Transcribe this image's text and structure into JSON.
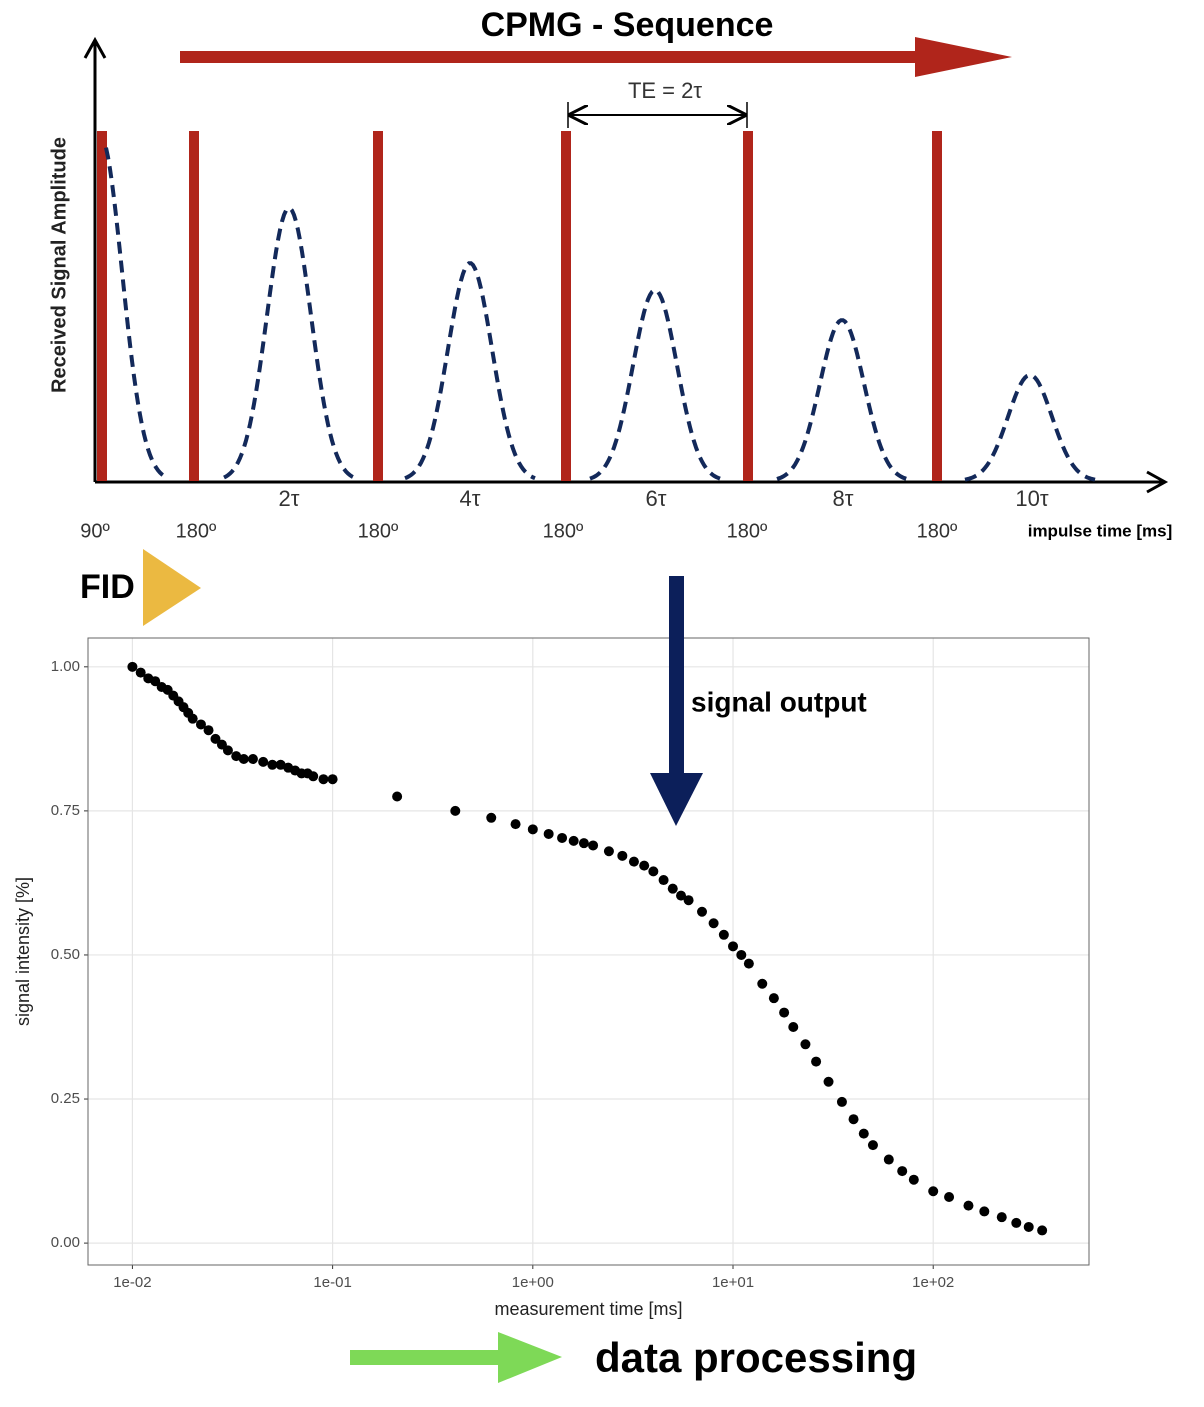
{
  "diagram": {
    "title": "CPMG - Sequence",
    "echo_spacing": "TE = 2τ",
    "y_label": "Received Signal Amplitude",
    "x_label": "impulse time [ms]",
    "echo_labels": [
      "2τ",
      "4τ",
      "6τ",
      "8τ",
      "10τ"
    ],
    "pulse_labels": [
      "90º",
      "180º",
      "180º",
      "180º",
      "180º",
      "180º"
    ],
    "fid": "FID",
    "signal_output": "signal output",
    "data_processing": "data processing"
  },
  "chart_data": {
    "type": "scatter",
    "xlabel": "measurement time [ms]",
    "ylabel": "signal intensity [%]",
    "log_x": true,
    "grid": true,
    "color": "#000000",
    "xlim": [
      0.006,
      600
    ],
    "ylim": [
      -0.038,
      1.05
    ],
    "xticks": [
      {
        "value": 0.01,
        "label": "1e-02"
      },
      {
        "value": 0.1,
        "label": "1e-01"
      },
      {
        "value": 1,
        "label": "1e+00"
      },
      {
        "value": 10,
        "label": "1e+01"
      },
      {
        "value": 100,
        "label": "1e+02"
      }
    ],
    "yticks": [
      {
        "value": 0,
        "label": "0.00"
      },
      {
        "value": 0.25,
        "label": "0.25"
      },
      {
        "value": 0.5,
        "label": "0.50"
      },
      {
        "value": 0.75,
        "label": "0.75"
      },
      {
        "value": 1,
        "label": "1.00"
      }
    ],
    "x": [
      0.01,
      0.011,
      0.012,
      0.013,
      0.014,
      0.015,
      0.016,
      0.017,
      0.018,
      0.019,
      0.02,
      0.022,
      0.024,
      0.026,
      0.028,
      0.03,
      0.033,
      0.036,
      0.04,
      0.045,
      0.05,
      0.055,
      0.06,
      0.065,
      0.07,
      0.075,
      0.08,
      0.09,
      0.1,
      0.21,
      0.41,
      0.62,
      0.82,
      1.0,
      1.2,
      1.4,
      1.6,
      1.8,
      2.0,
      2.4,
      2.8,
      3.2,
      3.6,
      4,
      4.5,
      5,
      5.5,
      6,
      7,
      8,
      9,
      10,
      11,
      12,
      14,
      16,
      18,
      20,
      23,
      26,
      30,
      35,
      40,
      45,
      50,
      60,
      70,
      80,
      100,
      120,
      150,
      180,
      220,
      260,
      300,
      350
    ],
    "values": [
      1.0,
      0.99,
      0.98,
      0.975,
      0.965,
      0.96,
      0.95,
      0.94,
      0.93,
      0.92,
      0.91,
      0.9,
      0.89,
      0.875,
      0.865,
      0.855,
      0.845,
      0.84,
      0.84,
      0.835,
      0.83,
      0.83,
      0.825,
      0.82,
      0.815,
      0.815,
      0.81,
      0.805,
      0.805,
      0.775,
      0.75,
      0.738,
      0.727,
      0.718,
      0.71,
      0.703,
      0.698,
      0.694,
      0.69,
      0.68,
      0.672,
      0.662,
      0.655,
      0.645,
      0.63,
      0.615,
      0.603,
      0.595,
      0.575,
      0.555,
      0.535,
      0.515,
      0.5,
      0.485,
      0.45,
      0.425,
      0.4,
      0.375,
      0.345,
      0.315,
      0.28,
      0.245,
      0.215,
      0.19,
      0.17,
      0.145,
      0.125,
      0.11,
      0.09,
      0.08,
      0.065,
      0.055,
      0.045,
      0.035,
      0.028,
      0.022
    ]
  }
}
